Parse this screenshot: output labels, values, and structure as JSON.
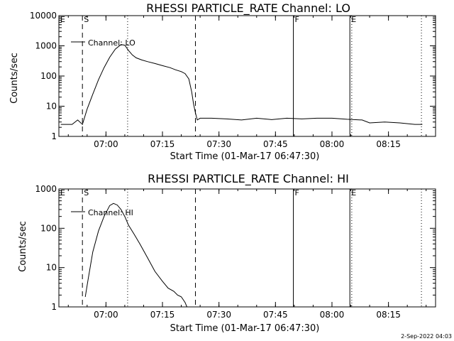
{
  "footer_stamp": "2-Sep-2022 04:03",
  "chart_data": [
    {
      "type": "line",
      "title": "RHESSI PARTICLE_RATE Channel: LO",
      "xlabel": "Start Time (01-Mar-17 06:47:30)",
      "ylabel": "Counts/sec",
      "yscale": "log",
      "ylim": [
        1,
        10000
      ],
      "xlim": [
        "06:47:30",
        "08:27:30"
      ],
      "xticks": [
        "07:00",
        "07:15",
        "07:30",
        "07:45",
        "08:00",
        "08:15"
      ],
      "yticks": [
        "1",
        "10",
        "100",
        "1000",
        "10000"
      ],
      "legend": "Channel: LO",
      "legend_position": "top-left",
      "markers": [
        {
          "label": "E",
          "time": "06:47:30",
          "style": "solid"
        },
        {
          "label": "S",
          "time": "06:53:45",
          "style": "dashed"
        },
        {
          "label": "",
          "time": "07:05:45",
          "style": "dotted"
        },
        {
          "label": "",
          "time": "07:23:45",
          "style": "dashed"
        },
        {
          "label": "F",
          "time": "07:49:45",
          "style": "solid"
        },
        {
          "label": "E",
          "time": "08:04:45",
          "style": "solid"
        },
        {
          "label": "",
          "time": "08:05:15",
          "style": "dotted"
        },
        {
          "label": "",
          "time": "08:23:45",
          "style": "dotted"
        }
      ],
      "series": [
        {
          "name": "Channel: LO",
          "x": [
            "06:48:00",
            "06:51:00",
            "06:52:30",
            "06:53:45",
            "06:55:00",
            "06:56:30",
            "06:58:00",
            "06:59:30",
            "07:01:00",
            "07:02:30",
            "07:04:00",
            "07:05:00",
            "07:06:00",
            "07:07:00",
            "07:08:00",
            "07:09:30",
            "07:11:00",
            "07:13:00",
            "07:15:00",
            "07:17:00",
            "07:18:30",
            "07:20:00",
            "07:21:00",
            "07:22:00",
            "07:22:45",
            "07:23:15",
            "07:23:45",
            "07:24:15",
            "07:25:00",
            "07:28:00",
            "07:32:00",
            "07:36:00",
            "07:40:00",
            "07:44:00",
            "07:48:00",
            "07:52:00",
            "07:56:00",
            "08:00:00",
            "08:04:00",
            "08:08:00",
            "08:10:00",
            "08:14:00",
            "08:18:00",
            "08:22:00",
            "08:24:00"
          ],
          "values": [
            2.5,
            2.5,
            3.5,
            2.5,
            8,
            25,
            75,
            190,
            420,
            780,
            1100,
            1050,
            700,
            500,
            400,
            340,
            300,
            260,
            220,
            190,
            160,
            140,
            120,
            80,
            30,
            12,
            6,
            3.5,
            4,
            4,
            3.8,
            3.5,
            4,
            3.6,
            4,
            3.8,
            4,
            4,
            3.7,
            3.5,
            2.8,
            3,
            2.8,
            2.5,
            2.5
          ]
        }
      ]
    },
    {
      "type": "line",
      "title": "RHESSI PARTICLE_RATE Channel: HI",
      "xlabel": "Start Time (01-Mar-17 06:47:30)",
      "ylabel": "Counts/sec",
      "yscale": "log",
      "ylim": [
        1,
        1000
      ],
      "xlim": [
        "06:47:30",
        "08:27:30"
      ],
      "xticks": [
        "07:00",
        "07:15",
        "07:30",
        "07:45",
        "08:00",
        "08:15"
      ],
      "yticks": [
        "1",
        "10",
        "100",
        "1000"
      ],
      "legend": "Channel: HI",
      "legend_position": "top-left",
      "markers": [
        {
          "label": "E",
          "time": "06:47:30",
          "style": "solid"
        },
        {
          "label": "S",
          "time": "06:53:45",
          "style": "dashed"
        },
        {
          "label": "",
          "time": "07:05:45",
          "style": "dotted"
        },
        {
          "label": "",
          "time": "07:23:45",
          "style": "dashed"
        },
        {
          "label": "F",
          "time": "07:49:45",
          "style": "solid"
        },
        {
          "label": "E",
          "time": "08:04:45",
          "style": "solid"
        },
        {
          "label": "",
          "time": "08:05:15",
          "style": "dotted"
        },
        {
          "label": "",
          "time": "08:23:45",
          "style": "dotted"
        }
      ],
      "series": [
        {
          "name": "Channel: HI",
          "x": [
            "06:54:30",
            "06:55:15",
            "06:56:30",
            "06:58:00",
            "06:59:30",
            "07:01:00",
            "07:02:00",
            "07:03:00",
            "07:04:00",
            "07:05:00",
            "07:06:00",
            "07:07:30",
            "07:09:00",
            "07:11:00",
            "07:13:00",
            "07:15:00",
            "07:16:30",
            "07:18:00",
            "07:19:00",
            "07:20:00",
            "07:21:00",
            "07:21:30"
          ],
          "values": [
            1.8,
            5,
            25,
            85,
            200,
            380,
            430,
            390,
            300,
            200,
            120,
            70,
            40,
            18,
            8,
            4.5,
            3,
            2.5,
            2,
            1.8,
            1.3,
            1
          ]
        }
      ]
    }
  ]
}
